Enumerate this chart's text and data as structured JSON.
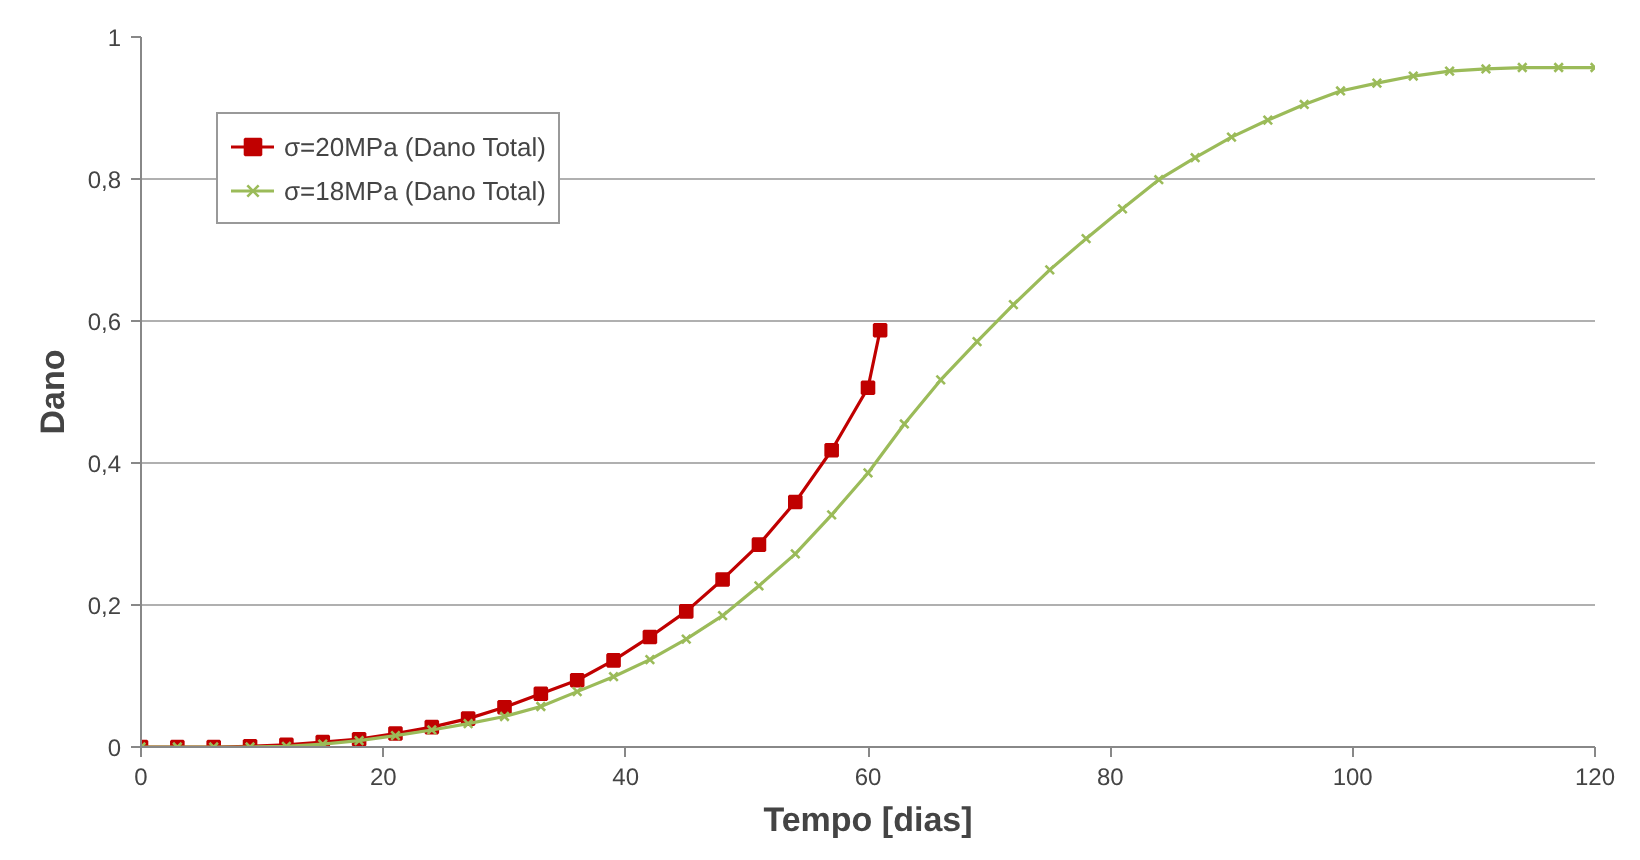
{
  "chart_data": {
    "type": "line",
    "xlabel": "Tempo [dias]",
    "ylabel": "Dano",
    "xlim": [
      0,
      120
    ],
    "xticks": [
      0,
      20,
      40,
      60,
      80,
      100,
      120
    ],
    "ylim": [
      0,
      1
    ],
    "yticks": [
      0,
      {
        "value": 0.2,
        "label": "0,2"
      },
      {
        "value": 0.4,
        "label": "0,4"
      },
      {
        "value": 0.6,
        "label": "0,6"
      },
      {
        "value": 0.8,
        "label": "0,8"
      },
      1
    ],
    "grid": "y",
    "legend": "top left",
    "line_style": "solid",
    "series": [
      {
        "name": "σ=20MPa (Dano Total)",
        "color": "#c00000",
        "marker": "square",
        "x": [
          0,
          3,
          6,
          9,
          12,
          15,
          18,
          21,
          24,
          27,
          30,
          33,
          36,
          39,
          42,
          45,
          48,
          51,
          54,
          57,
          60,
          61
        ],
        "values": [
          0,
          0,
          0,
          0.001,
          0.003,
          0.007,
          0.011,
          0.019,
          0.028,
          0.04,
          0.056,
          0.075,
          0.094,
          0.122,
          0.155,
          0.191,
          0.236,
          0.285,
          0.345,
          0.418,
          0.506,
          0.587
        ]
      },
      {
        "name": "σ=18MPa (Dano Total)",
        "color": "#9bbb59",
        "marker": "cross",
        "x": [
          0,
          3,
          6,
          9,
          12,
          15,
          18,
          21,
          24,
          27,
          30,
          33,
          36,
          39,
          42,
          45,
          48,
          51,
          54,
          57,
          60,
          63,
          66,
          69,
          72,
          75,
          78,
          81,
          84,
          87,
          90,
          93,
          96,
          99,
          102,
          105,
          108,
          111,
          114,
          117,
          120
        ],
        "values": [
          0,
          0,
          0,
          0,
          0.001,
          0.004,
          0.009,
          0.016,
          0.024,
          0.033,
          0.043,
          0.057,
          0.078,
          0.099,
          0.123,
          0.152,
          0.185,
          0.227,
          0.272,
          0.327,
          0.386,
          0.455,
          0.517,
          0.571,
          0.623,
          0.672,
          0.716,
          0.758,
          0.799,
          0.83,
          0.859,
          0.883,
          0.905,
          0.924,
          0.935,
          0.945,
          0.952,
          0.955,
          0.957,
          0.957,
          0.957
        ]
      }
    ]
  }
}
